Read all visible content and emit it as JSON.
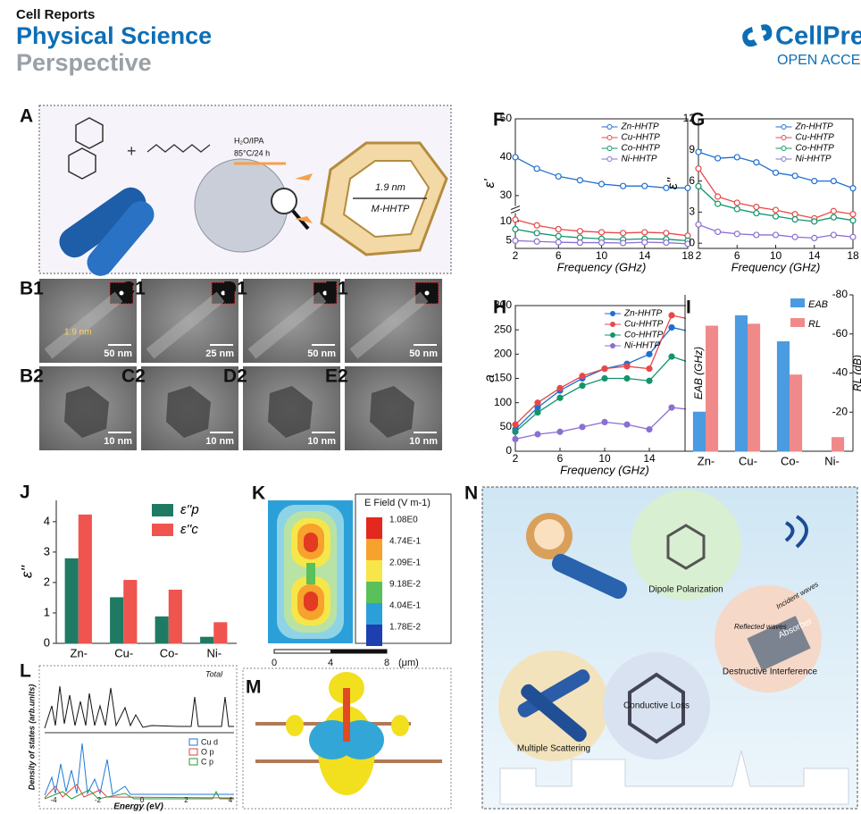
{
  "header": {
    "journal_1": "Cell Reports",
    "journal_2": "Physical Science",
    "section": "Perspective",
    "brand": "CellPres",
    "access": "OPEN ACCE"
  },
  "panels": {
    "A": {
      "label": "A",
      "solvent": "H₂O/IPA",
      "conditions": "85°C/24 h",
      "pore": "1.9 nm",
      "name": "M-HHTP"
    },
    "tem": [
      {
        "label": "B1",
        "scale": "50 nm",
        "note": "1.9 nm"
      },
      {
        "label": "C1",
        "scale": "25 nm"
      },
      {
        "label": "D1",
        "scale": "50 nm"
      },
      {
        "label": "E1",
        "scale": "50 nm"
      },
      {
        "label": "B2",
        "scale": "10 nm"
      },
      {
        "label": "C2",
        "scale": "10 nm"
      },
      {
        "label": "D2",
        "scale": "10 nm"
      },
      {
        "label": "E2",
        "scale": "10 nm"
      }
    ],
    "K": {
      "label": "K",
      "legend_title": "E Field (V m-1)",
      "levels": [
        "1.08E0",
        "4.74E-1",
        "2.09E-1",
        "9.18E-2",
        "4.04E-1",
        "1.78E-2"
      ],
      "axis": [
        "0",
        "4",
        "8"
      ],
      "unit": "(μm)"
    },
    "L": {
      "label": "L",
      "curve": "Total",
      "ylabel": "Density of states (arb.units)",
      "xlabel": "Energy (eV)",
      "legend": [
        "Cu d",
        "O p",
        "C p"
      ],
      "ticks": [
        "-4",
        "-2",
        "0",
        "2",
        "4"
      ]
    },
    "M": {
      "label": "M"
    },
    "N": {
      "label": "N",
      "dipole": "Dipole Polarization",
      "conductive": "Conductive Loss",
      "scattering": "Multiple Scattering",
      "interference": "Destructive Interference",
      "incident": "Incident waves",
      "reflected": "Reflected waves",
      "absorber": "Absorber"
    }
  },
  "chart_data": [
    {
      "type": "line",
      "panel": "F",
      "xlabel": "Frequency (GHz)",
      "ylabel": "ε'",
      "x": [
        2,
        4,
        6,
        8,
        10,
        12,
        14,
        16,
        18
      ],
      "xlim": [
        2,
        18
      ],
      "xticks": [
        2,
        6,
        10,
        14,
        18
      ],
      "ylim": [
        3,
        50
      ],
      "ybreak": [
        11.5,
        28
      ],
      "yticks": [
        5,
        10,
        30,
        40,
        50
      ],
      "marker": "open",
      "series": [
        {
          "name": "Zn-HHTP",
          "color": "#1f6fd0",
          "values": [
            40,
            37,
            35,
            34,
            33,
            32.5,
            32.5,
            32,
            32
          ]
        },
        {
          "name": "Cu-HHTP",
          "color": "#e84848",
          "values": [
            10.5,
            9,
            8,
            7.5,
            7.2,
            7,
            7.2,
            7,
            6.3
          ]
        },
        {
          "name": "Co-HHTP",
          "color": "#14946a",
          "values": [
            8,
            7,
            6.2,
            5.8,
            5.5,
            5.3,
            5.5,
            5.4,
            5
          ]
        },
        {
          "name": "Ni-HHTP",
          "color": "#8b6fd3",
          "values": [
            5,
            4.8,
            4.6,
            4.5,
            4.5,
            4.4,
            4.6,
            4.5,
            4.2
          ]
        }
      ]
    },
    {
      "type": "line",
      "panel": "G",
      "xlabel": "Frequency (GHz)",
      "ylabel": "ε''",
      "x": [
        2,
        4,
        6,
        8,
        10,
        12,
        14,
        16,
        18
      ],
      "xlim": [
        2,
        18
      ],
      "xticks": [
        2,
        6,
        10,
        14,
        18
      ],
      "ylim": [
        -0.5,
        12
      ],
      "yticks": [
        0,
        3,
        6,
        9,
        12
      ],
      "marker": "open",
      "series": [
        {
          "name": "Zn-HHTP",
          "color": "#1f6fd0",
          "values": [
            8.8,
            8.2,
            8.3,
            7.8,
            6.8,
            6.5,
            6,
            6,
            5.3
          ]
        },
        {
          "name": "Cu-HHTP",
          "color": "#e84848",
          "values": [
            7.2,
            4.5,
            3.9,
            3.5,
            3.2,
            2.8,
            2.4,
            3.1,
            2.8
          ]
        },
        {
          "name": "Co-HHTP",
          "color": "#14946a",
          "values": [
            5.5,
            3.8,
            3.3,
            2.9,
            2.6,
            2.3,
            2.1,
            2.5,
            2.2
          ]
        },
        {
          "name": "Ni-HHTP",
          "color": "#8b6fd3",
          "values": [
            1.8,
            1.1,
            0.9,
            0.8,
            0.8,
            0.6,
            0.5,
            0.8,
            0.6
          ]
        }
      ]
    },
    {
      "type": "line",
      "panel": "H",
      "xlabel": "Frequency (GHz)",
      "ylabel": "a",
      "x": [
        2,
        4,
        6,
        8,
        10,
        12,
        14,
        16,
        18
      ],
      "xlim": [
        2,
        18
      ],
      "xticks": [
        2,
        6,
        10,
        14,
        18
      ],
      "ylim": [
        0,
        300
      ],
      "yticks": [
        0,
        50,
        100,
        150,
        200,
        250,
        300
      ],
      "marker": "filled",
      "series": [
        {
          "name": "Zn-HHTP",
          "color": "#1f6fd0",
          "values": [
            45,
            90,
            125,
            150,
            170,
            180,
            200,
            255,
            245
          ]
        },
        {
          "name": "Cu-HHTP",
          "color": "#e84848",
          "values": [
            55,
            100,
            130,
            155,
            170,
            175,
            170,
            280,
            270
          ]
        },
        {
          "name": "Co-HHTP",
          "color": "#14946a",
          "values": [
            40,
            80,
            110,
            135,
            150,
            150,
            145,
            195,
            180
          ]
        },
        {
          "name": "Ni-HHTP",
          "color": "#8b6fd3",
          "values": [
            25,
            35,
            40,
            50,
            60,
            55,
            45,
            90,
            85
          ]
        }
      ]
    },
    {
      "type": "bar",
      "panel": "I",
      "ylabel": "EAB (GHz)",
      "y2label": "RL (dB)",
      "categories": [
        "Zn-",
        "Cu-",
        "Co-",
        "Ni-"
      ],
      "ylim": [
        0,
        6
      ],
      "y2lim": [
        0,
        -80
      ],
      "y2ticks": [
        -80,
        -60,
        -40,
        -20
      ],
      "series": [
        {
          "name": "EAB",
          "color": "#4a9be0",
          "values": [
            1.5,
            5.2,
            4.2,
            0
          ]
        },
        {
          "name": "RL",
          "color": "#f08a8a",
          "axis": "y2",
          "values": [
            -64,
            -65,
            -39,
            -7
          ]
        }
      ]
    },
    {
      "type": "bar",
      "panel": "J",
      "ylabel": "ε''",
      "categories": [
        "Zn-",
        "Cu-",
        "Co-",
        "Ni-"
      ],
      "ylim": [
        0,
        4.7
      ],
      "yticks": [
        0,
        1,
        2,
        3,
        4
      ],
      "series": [
        {
          "name": "ε''p",
          "color": "#1f7a64",
          "values": [
            2.78,
            1.5,
            0.87,
            0.2
          ]
        },
        {
          "name": "ε''c",
          "color": "#f0544f",
          "values": [
            4.22,
            2.07,
            1.75,
            0.68
          ]
        }
      ]
    }
  ]
}
